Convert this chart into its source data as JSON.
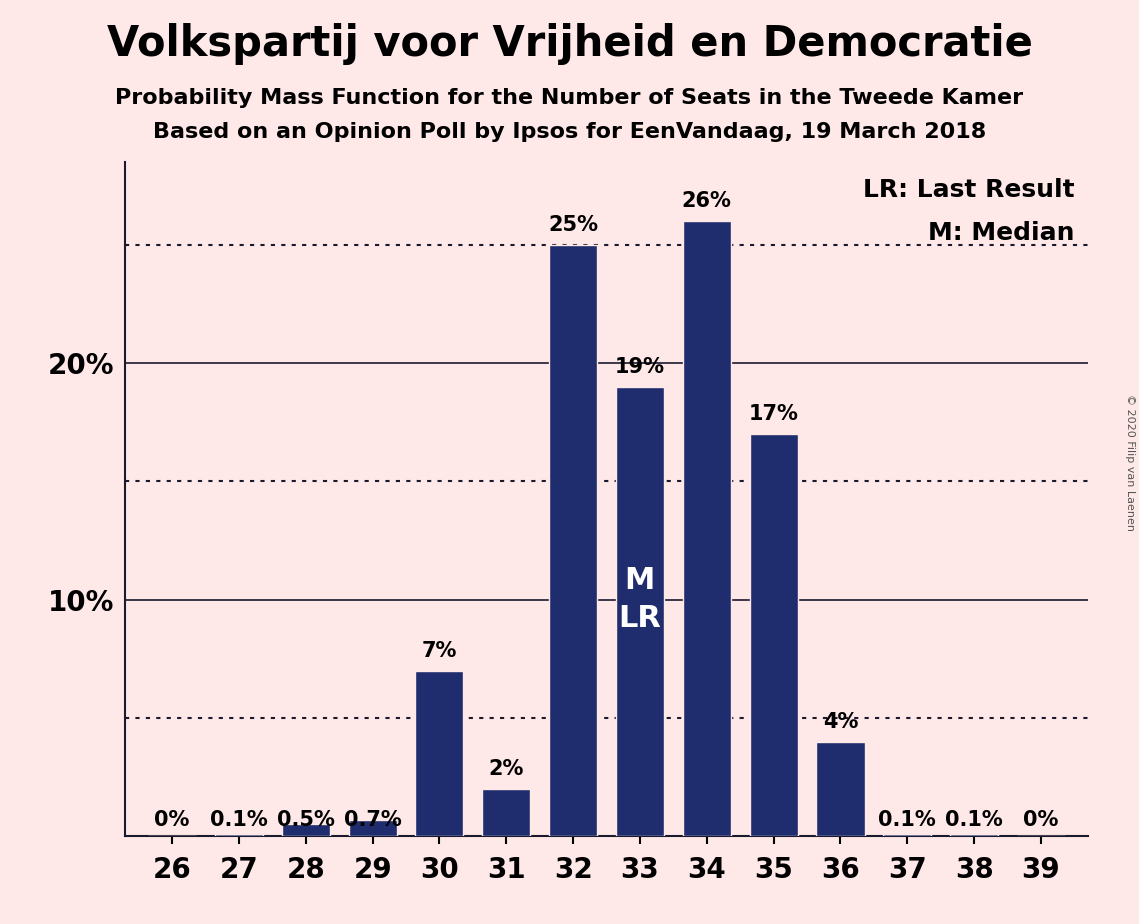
{
  "title": "Volkspartij voor Vrijheid en Democratie",
  "subtitle1": "Probability Mass Function for the Number of Seats in the Tweede Kamer",
  "subtitle2": "Based on an Opinion Poll by Ipsos for EenVandaag, 19 March 2018",
  "copyright": "© 2020 Filip van Laenen",
  "seats": [
    26,
    27,
    28,
    29,
    30,
    31,
    32,
    33,
    34,
    35,
    36,
    37,
    38,
    39
  ],
  "probabilities": [
    0.0,
    0.1,
    0.5,
    0.7,
    7.0,
    2.0,
    25.0,
    19.0,
    26.0,
    17.0,
    4.0,
    0.1,
    0.1,
    0.0
  ],
  "labels": [
    "0%",
    "0.1%",
    "0.5%",
    "0.7%",
    "7%",
    "2%",
    "25%",
    "19%",
    "26%",
    "17%",
    "4%",
    "0.1%",
    "0.1%",
    "0%"
  ],
  "bar_color": "#1F2D6E",
  "background_color": "#FFE8E8",
  "bar_edge_color": "#FFE8E8",
  "median_seat": 33,
  "legend_lr": "LR: Last Result",
  "legend_m": "M: Median",
  "ylim": [
    0,
    28.5
  ],
  "grid_color": "#1a1a2e",
  "solid_yticks": [
    10,
    20
  ],
  "dotted_yticks": [
    5,
    15,
    25
  ],
  "ytick_labels_map": {
    "10": "10%",
    "20": "20%"
  },
  "title_fontsize": 30,
  "subtitle_fontsize": 16,
  "bar_label_fontsize": 15,
  "tick_fontsize": 20,
  "legend_fontsize": 18,
  "ml_label_fontsize": 22,
  "bar_width": 0.72
}
